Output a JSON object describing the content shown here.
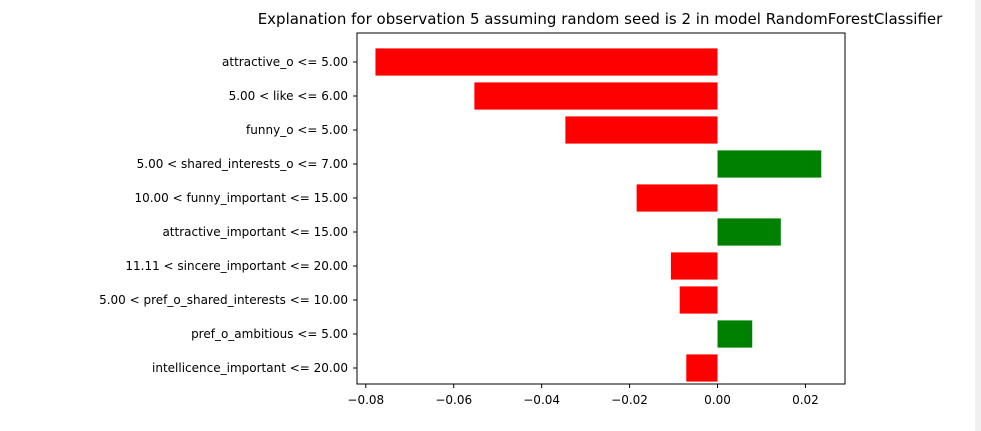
{
  "chart_data": {
    "type": "bar",
    "orientation": "horizontal",
    "title": "Explanation for observation 5 assuming random seed is 2 in model RandomForestClassifier",
    "xlabel": "",
    "ylabel": "",
    "xlim": [
      -0.082,
      0.029
    ],
    "xticks": [
      -0.08,
      -0.06,
      -0.04,
      -0.02,
      0.0,
      0.02
    ],
    "xtick_labels": [
      "−0.08",
      "−0.06",
      "−0.04",
      "−0.02",
      "0.00",
      "0.02"
    ],
    "grid": false,
    "positive_color": "#008000",
    "negative_color": "#ff0000",
    "categories": [
      "attractive_o <= 5.00",
      "5.00 < like <= 6.00",
      "funny_o <= 5.00",
      "5.00 < shared_interests_o <= 7.00",
      "10.00 < funny_important <= 15.00",
      "attractive_important <= 15.00",
      "11.11 < sincere_important <= 20.00",
      "5.00 < pref_o_shared_interests <= 10.00",
      "pref_o_ambitious <= 5.00",
      "intellicence_important <= 20.00"
    ],
    "values": [
      -0.0778,
      -0.0553,
      -0.0346,
      0.0236,
      -0.0184,
      0.0144,
      -0.0106,
      -0.0086,
      0.0079,
      -0.0071
    ]
  }
}
